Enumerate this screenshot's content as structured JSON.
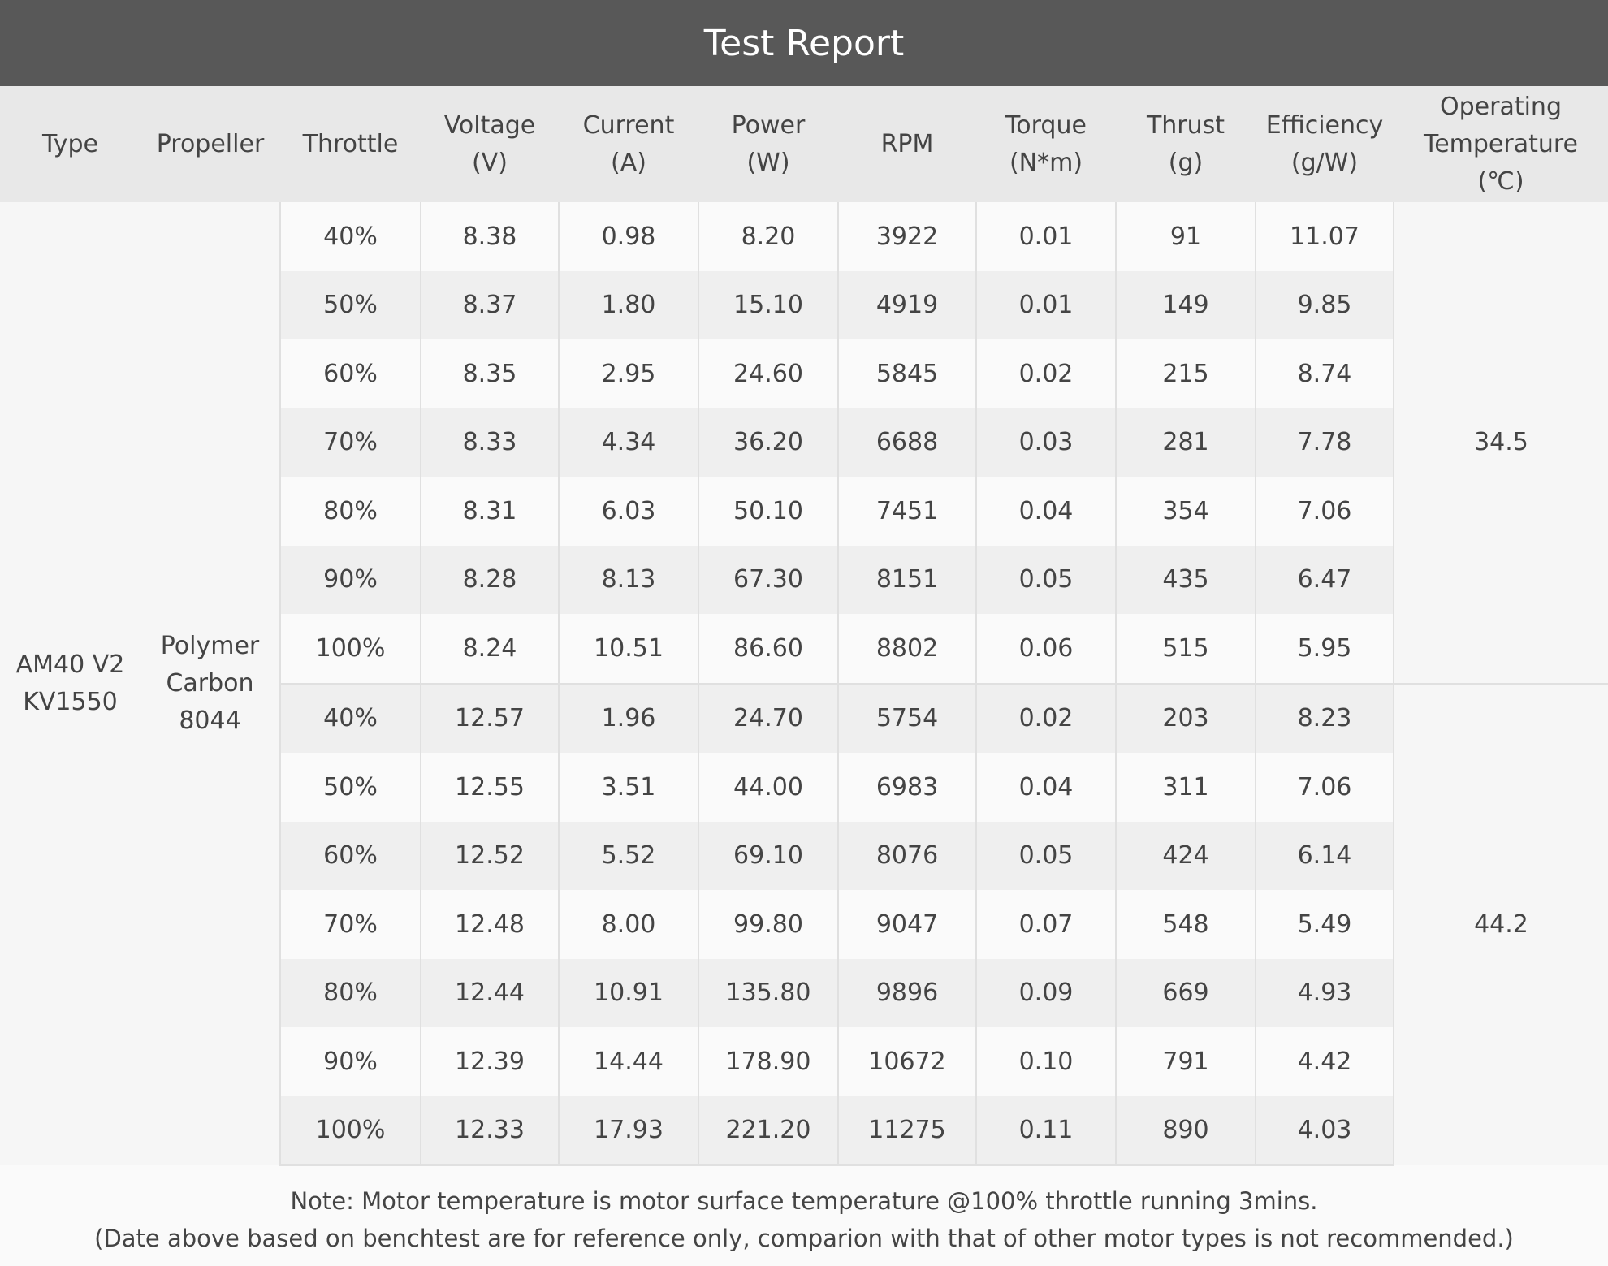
{
  "header": {
    "title": "Test Report"
  },
  "table": {
    "columns": [
      "Type",
      "Propeller",
      "Throttle",
      "Voltage\n(V)",
      "Current\n(A)",
      "Power\n(W)",
      "RPM",
      "Torque\n(N*m)",
      "Thrust\n(g)",
      "Efficiency\n(g/W)",
      "Operating\nTemperature\n(℃)"
    ],
    "type": "AM40 V2\nKV1550",
    "propeller": "Polymer\nCarbon\n8044",
    "groups": [
      {
        "temperature": "34.5",
        "rows": [
          [
            "40%",
            "8.38",
            "0.98",
            "8.20",
            "3922",
            "0.01",
            "91",
            "11.07"
          ],
          [
            "50%",
            "8.37",
            "1.80",
            "15.10",
            "4919",
            "0.01",
            "149",
            "9.85"
          ],
          [
            "60%",
            "8.35",
            "2.95",
            "24.60",
            "5845",
            "0.02",
            "215",
            "8.74"
          ],
          [
            "70%",
            "8.33",
            "4.34",
            "36.20",
            "6688",
            "0.03",
            "281",
            "7.78"
          ],
          [
            "80%",
            "8.31",
            "6.03",
            "50.10",
            "7451",
            "0.04",
            "354",
            "7.06"
          ],
          [
            "90%",
            "8.28",
            "8.13",
            "67.30",
            "8151",
            "0.05",
            "435",
            "6.47"
          ],
          [
            "100%",
            "8.24",
            "10.51",
            "86.60",
            "8802",
            "0.06",
            "515",
            "5.95"
          ]
        ]
      },
      {
        "temperature": "44.2",
        "rows": [
          [
            "40%",
            "12.57",
            "1.96",
            "24.70",
            "5754",
            "0.02",
            "203",
            "8.23"
          ],
          [
            "50%",
            "12.55",
            "3.51",
            "44.00",
            "6983",
            "0.04",
            "311",
            "7.06"
          ],
          [
            "60%",
            "12.52",
            "5.52",
            "69.10",
            "8076",
            "0.05",
            "424",
            "6.14"
          ],
          [
            "70%",
            "12.48",
            "8.00",
            "99.80",
            "9047",
            "0.07",
            "548",
            "5.49"
          ],
          [
            "80%",
            "12.44",
            "10.91",
            "135.80",
            "9896",
            "0.09",
            "669",
            "4.93"
          ],
          [
            "90%",
            "12.39",
            "14.44",
            "178.90",
            "10672",
            "0.10",
            "791",
            "4.42"
          ],
          [
            "100%",
            "12.33",
            "17.93",
            "221.20",
            "11275",
            "0.11",
            "890",
            "4.03"
          ]
        ]
      }
    ]
  },
  "notes": [
    "Note: Motor temperature is motor surface temperature @100% throttle running 3mins.",
    "(Date above based on benchtest are for reference only, comparion with that of other motor types is not recommended.)"
  ]
}
